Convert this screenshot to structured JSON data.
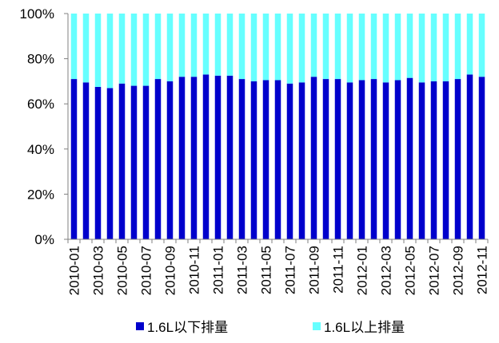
{
  "chart_data": {
    "type": "bar",
    "stacked": true,
    "ylim": [
      0,
      100
    ],
    "yticks": [
      "0%",
      "20%",
      "40%",
      "60%",
      "80%",
      "100%"
    ],
    "categories": [
      "2010-01",
      "2010-02",
      "2010-03",
      "2010-04",
      "2010-05",
      "2010-06",
      "2010-07",
      "2010-08",
      "2010-09",
      "2010-10",
      "2010-11",
      "2010-12",
      "2011-01",
      "2011-02",
      "2011-03",
      "2011-04",
      "2011-05",
      "2011-06",
      "2011-07",
      "2011-08",
      "2011-09",
      "2011-10",
      "2011-11",
      "2011-12",
      "2012-01",
      "2012-02",
      "2012-03",
      "2012-04",
      "2012-05",
      "2012-06",
      "2012-07",
      "2012-08",
      "2012-09",
      "2012-10",
      "2012-11"
    ],
    "xtick_labels_shown": [
      "2010-01",
      "2010-03",
      "2010-05",
      "2010-07",
      "2010-09",
      "2010-11",
      "2011-01",
      "2011-03",
      "2011-05",
      "2011-07",
      "2011-09",
      "2011-11",
      "2012-01",
      "2012-03",
      "2012-05",
      "2012-07",
      "2012-09",
      "2012-11"
    ],
    "series": [
      {
        "name": "1.6L以下排量",
        "color": "#0000CC",
        "values": [
          71,
          69.5,
          67.5,
          67,
          69,
          68,
          68,
          71,
          70,
          72,
          72,
          73,
          72.5,
          72.5,
          71,
          70,
          70.5,
          70.5,
          69,
          69.5,
          72,
          71,
          71,
          69.5,
          70.5,
          71,
          69.5,
          70.5,
          71.5,
          69.5,
          70,
          70,
          71,
          73,
          72
        ]
      },
      {
        "name": "1.6L以上排量",
        "color": "#66FFFF",
        "values": [
          29,
          30.5,
          32.5,
          33,
          31,
          32,
          32,
          29,
          30,
          28,
          28,
          27,
          27.5,
          27.5,
          29,
          30,
          29.5,
          29.5,
          31,
          30.5,
          28,
          29,
          29,
          30.5,
          29.5,
          29,
          30.5,
          29.5,
          28.5,
          30.5,
          30,
          30,
          29,
          27,
          28
        ]
      }
    ],
    "legend_position": "bottom",
    "grid": false
  }
}
